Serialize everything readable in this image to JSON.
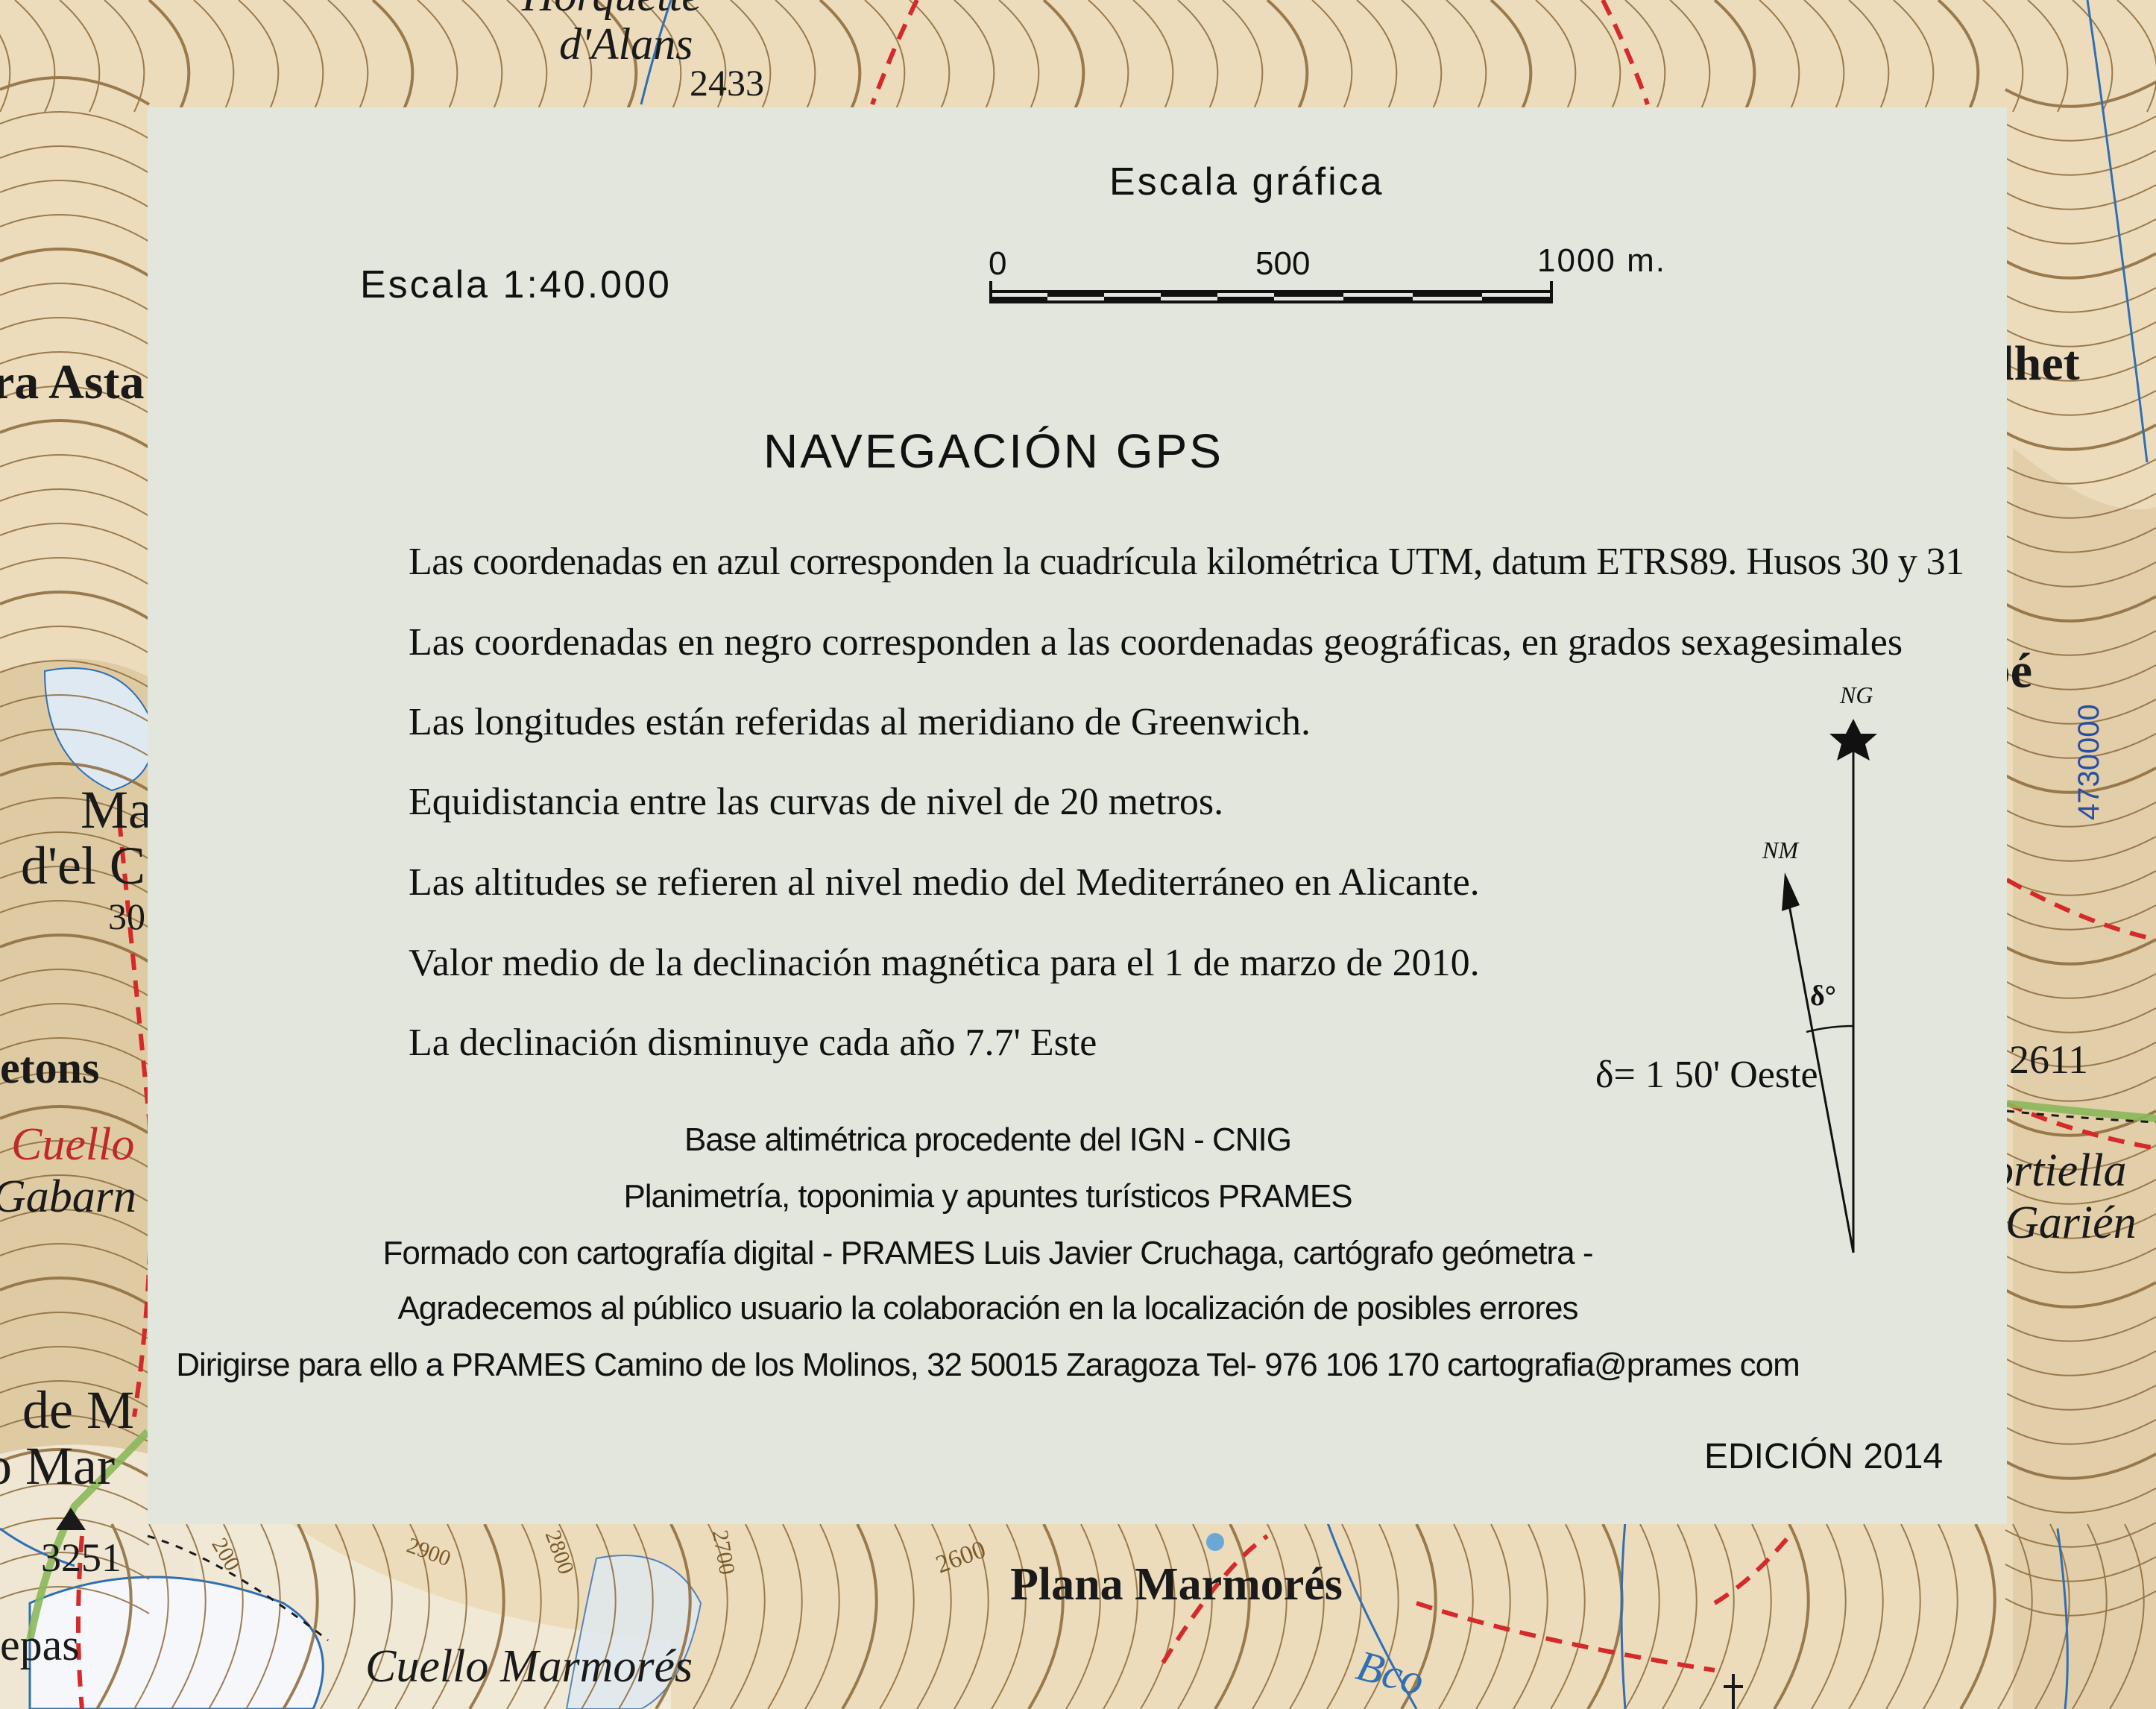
{
  "map_labels": {
    "top_peak_1": "Horquette",
    "top_peak_2": "d'Alans",
    "top_elev": "2433",
    "left_asta": "ra Asta",
    "left_ma": "Ma",
    "left_del": "d'el C",
    "left_elev_30": "30",
    "left_etons": "etons",
    "left_cuello": "Cuello",
    "left_gabarn": "Gabarn",
    "left_de_m": "de M",
    "left_o_mar": "o Mar",
    "left_elev_3251": "3251",
    "left_epas": "epas",
    "bottom_cuello_marmores": "Cuello Marmorés",
    "bottom_plana_marmores": "Plana Marmorés",
    "bottom_elev_2600": "2600",
    "contour_2900": "2900",
    "contour_2800": "2800",
    "contour_2700": "2700",
    "contour_200": "200",
    "bottom_bco": "Bco",
    "right_ilhet": "ilhet",
    "right_pe": "pé",
    "right_elev_2611": "2611",
    "right_ortiella": "ortiella",
    "right_garien": "Garién",
    "utm_right": "4730000"
  },
  "legend": {
    "scale_text": "Escala 1:40.000",
    "scale_bar_title": "Escala gráfica",
    "scale_ticks": [
      "0",
      "500",
      "1000 m."
    ],
    "title": "NAVEGACIÓN GPS",
    "notes": [
      "Las coordenadas en azul corresponden la cuadrícula kilométrica UTM, datum ETRS89. Husos 30 y 31",
      "Las coordenadas en negro corresponden a las coordenadas geográficas, en grados sexagesimales",
      "Las longitudes están referidas al meridiano de Greenwich.",
      "Equidistancia entre las curvas de nivel de 20 metros.",
      "Las altitudes se refieren al  nivel  medio del  Mediterráneo en Alicante.",
      "Valor medio de la declinación magnética para el 1 de marzo de 2010.",
      "La declinación disminuye cada año 7.7'  Este"
    ],
    "declination": {
      "ng_label": "NG",
      "nm_label": "NM",
      "angle_label": "δ°",
      "value": "δ= 1 50' Oeste"
    },
    "credits": [
      "Base altimétrica procedente del IGN - CNIG",
      "Planimetría, toponimia y apuntes turísticos PRAMES",
      "Formado con cartografía digital - PRAMES  Luis Javier Cruchaga, cartógrafo geómetra -",
      "Agradecemos al público usuario la colaboración en la localización de posibles errores",
      "Dirigirse para ello a PRAMES  Camino de los Molinos, 32  50015  Zaragoza  Tel- 976 106 170  cartografia@prames com"
    ],
    "edition": "EDICIÓN 2014"
  },
  "colors": {
    "terrain": "#ecdcbc",
    "contour": "#8c6a3a",
    "water": "#2f6fb5",
    "trail": "#d42a2a",
    "panel": "#e3e6dd"
  }
}
